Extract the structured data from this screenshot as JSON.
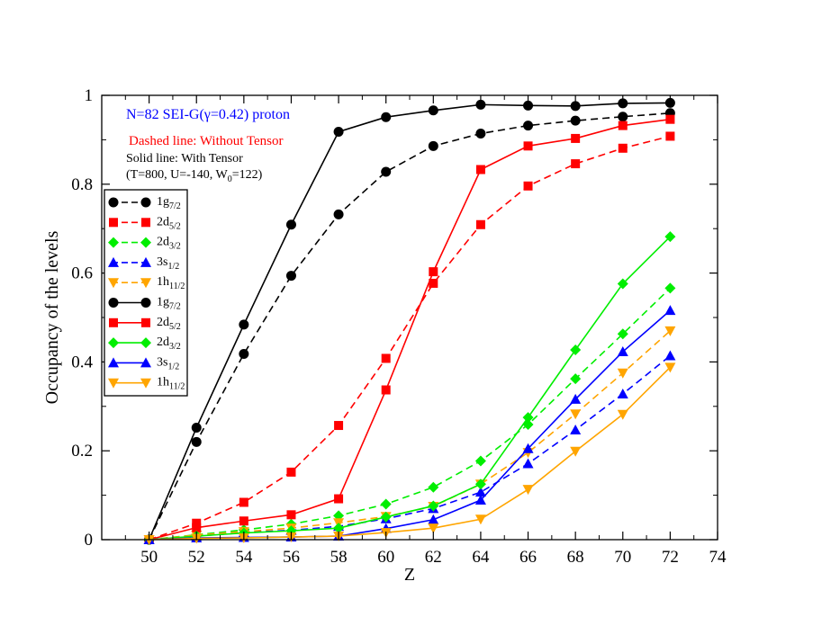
{
  "chart_data": {
    "type": "line",
    "xlabel": "Z",
    "ylabel": "Occupancy of the levels",
    "xlim": [
      48,
      74
    ],
    "ylim": [
      0,
      1
    ],
    "x_ticks": [
      50,
      52,
      54,
      56,
      58,
      60,
      62,
      64,
      66,
      68,
      70,
      72,
      74
    ],
    "y_ticks": [
      0,
      0.2,
      0.4,
      0.6,
      0.8,
      1
    ],
    "y_tick_labels": [
      "0",
      "0.2",
      "0.4",
      "0.6",
      "0.8",
      "1"
    ],
    "grid": false,
    "legend_position": "left",
    "annotations": {
      "title": "N=82  SEI-G(γ=0.42)   proton",
      "title_color": "#0000ff",
      "dashed_note": "Dashed line: Without Tensor",
      "dashed_note_color": "#ff0000",
      "solid_note": "Solid line: With Tensor",
      "params_prefix": "(T=800, U=-140, W",
      "params_sub": "0",
      "params_suffix": "=122)"
    },
    "x": [
      50,
      52,
      54,
      56,
      58,
      60,
      62,
      64,
      66,
      68,
      70,
      72
    ],
    "series": [
      {
        "name": "1g7/2",
        "label_main": "1g",
        "label_sub": "7/2",
        "color": "#000000",
        "marker": "circle",
        "dash": "dashed",
        "values": [
          0.0,
          0.22,
          0.418,
          0.594,
          0.732,
          0.828,
          0.886,
          0.914,
          0.932,
          0.943,
          0.952,
          0.96
        ]
      },
      {
        "name": "2d5/2",
        "label_main": "2d",
        "label_sub": "5/2",
        "color": "#ff0000",
        "marker": "square",
        "dash": "dashed",
        "values": [
          0.0,
          0.037,
          0.084,
          0.152,
          0.257,
          0.408,
          0.577,
          0.709,
          0.796,
          0.846,
          0.881,
          0.908
        ]
      },
      {
        "name": "2d3/2",
        "label_main": "2d",
        "label_sub": "3/2",
        "color": "#00ee00",
        "marker": "diamond",
        "dash": "dashed",
        "values": [
          0.0,
          0.011,
          0.022,
          0.035,
          0.054,
          0.08,
          0.118,
          0.177,
          0.259,
          0.362,
          0.463,
          0.566
        ]
      },
      {
        "name": "3s1/2",
        "label_main": "3s",
        "label_sub": "1/2",
        "color": "#0000ff",
        "marker": "triangle-up",
        "dash": "dashed",
        "values": [
          0.0,
          0.008,
          0.016,
          0.021,
          0.03,
          0.047,
          0.07,
          0.107,
          0.171,
          0.247,
          0.328,
          0.414
        ]
      },
      {
        "name": "1h11/2",
        "label_main": "1h",
        "label_sub": "11/2",
        "color": "#ffa500",
        "marker": "triangle-down",
        "dash": "dashed",
        "values": [
          0.0,
          0.01,
          0.018,
          0.026,
          0.038,
          0.052,
          0.075,
          0.125,
          0.196,
          0.283,
          0.375,
          0.47
        ]
      },
      {
        "name": "1g7/2",
        "label_main": "1g",
        "label_sub": "7/2",
        "color": "#000000",
        "marker": "circle",
        "dash": "solid",
        "values": [
          0.0,
          0.252,
          0.484,
          0.709,
          0.918,
          0.951,
          0.966,
          0.979,
          0.977,
          0.976,
          0.982,
          0.983
        ]
      },
      {
        "name": "2d5/2",
        "label_main": "2d",
        "label_sub": "5/2",
        "color": "#ff0000",
        "marker": "square",
        "dash": "solid",
        "values": [
          0.0,
          0.027,
          0.042,
          0.056,
          0.092,
          0.337,
          0.603,
          0.833,
          0.886,
          0.903,
          0.932,
          0.946
        ]
      },
      {
        "name": "2d3/2",
        "label_main": "2d",
        "label_sub": "3/2",
        "color": "#00ee00",
        "marker": "diamond",
        "dash": "solid",
        "values": [
          0.0,
          0.008,
          0.015,
          0.02,
          0.026,
          0.051,
          0.076,
          0.125,
          0.275,
          0.427,
          0.576,
          0.682
        ]
      },
      {
        "name": "3s1/2",
        "label_main": "3s",
        "label_sub": "1/2",
        "color": "#0000ff",
        "marker": "triangle-up",
        "dash": "solid",
        "values": [
          0.0,
          0.004,
          0.005,
          0.006,
          0.008,
          0.025,
          0.045,
          0.089,
          0.205,
          0.316,
          0.423,
          0.516
        ]
      },
      {
        "name": "1h11/2",
        "label_main": "1h",
        "label_sub": "11/2",
        "color": "#ffa500",
        "marker": "triangle-down",
        "dash": "solid",
        "values": [
          0.0,
          0.003,
          0.004,
          0.006,
          0.008,
          0.016,
          0.026,
          0.046,
          0.113,
          0.199,
          0.282,
          0.388
        ]
      }
    ]
  }
}
